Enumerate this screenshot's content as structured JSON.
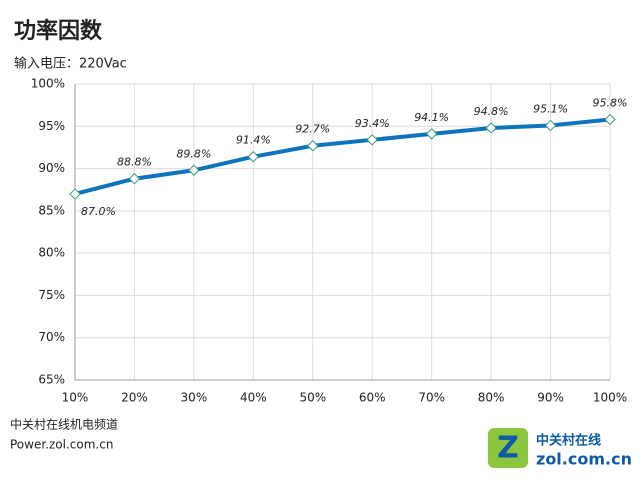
{
  "chart_data": {
    "type": "line",
    "title": "功率因数",
    "subtitle": "输入电压：220Vac",
    "categories": [
      "10%",
      "20%",
      "30%",
      "40%",
      "50%",
      "60%",
      "70%",
      "80%",
      "90%",
      "100%"
    ],
    "series": [
      {
        "color": "#0e72bd",
        "values": [
          87.0,
          88.8,
          89.8,
          91.4,
          92.7,
          93.4,
          94.1,
          94.8,
          95.1,
          95.8
        ],
        "value_labels": [
          "87.0%",
          "88.8%",
          "89.8%",
          "91.4%",
          "92.7%",
          "93.4%",
          "94.1%",
          "94.8%",
          "95.1%",
          "95.8%"
        ]
      }
    ],
    "ylim": [
      65,
      100
    ],
    "yticks": [
      {
        "value": 65,
        "label": "65%"
      },
      {
        "value": 70,
        "label": "70%"
      },
      {
        "value": 75,
        "label": "75%"
      },
      {
        "value": 80,
        "label": "80%"
      },
      {
        "value": 85,
        "label": "85%"
      },
      {
        "value": 90,
        "label": "90%"
      },
      {
        "value": 95,
        "label": "95%"
      },
      {
        "value": 100,
        "label": "100%"
      }
    ],
    "grid": true,
    "source": [
      "中关村在线机电频道",
      "Power.zol.com.cn"
    ],
    "logo": [
      "中关村在线",
      "zol.com.cn"
    ]
  }
}
